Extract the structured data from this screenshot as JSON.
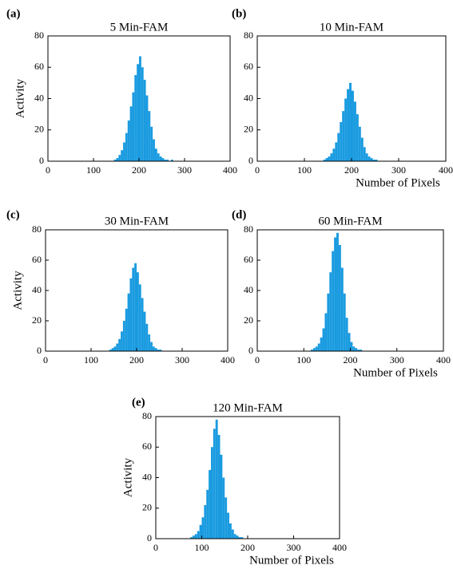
{
  "chart_data": [
    {
      "type": "histogram",
      "panel_label": "(a)",
      "title": "5 Min-FAM",
      "ylabel": "Activity",
      "color": "#1a9be0",
      "bins": [
        145,
        150,
        155,
        160,
        165,
        170,
        175,
        180,
        185,
        190,
        195,
        200,
        205,
        210,
        215,
        220,
        225,
        230,
        235,
        240,
        245,
        250,
        255,
        260,
        265,
        270,
        275,
        280
      ],
      "values": [
        1,
        2,
        4,
        7,
        12,
        18,
        26,
        35,
        44,
        55,
        62,
        67,
        60,
        52,
        42,
        32,
        22,
        14,
        8,
        5,
        3,
        2,
        1,
        1,
        0,
        1,
        0
      ],
      "xlim": [
        0,
        400
      ],
      "ylim": [
        0,
        80
      ],
      "xticks": [
        0,
        100,
        200,
        300,
        400
      ],
      "yticks": [
        0,
        20,
        40,
        60,
        80
      ]
    },
    {
      "type": "histogram",
      "panel_label": "(b)",
      "title": "10 Min-FAM",
      "xlabel": "Number of Pixels",
      "color": "#1a9be0",
      "bins": [
        140,
        145,
        150,
        155,
        160,
        165,
        170,
        175,
        180,
        185,
        190,
        195,
        200,
        205,
        210,
        215,
        220,
        225,
        230,
        235,
        240,
        245,
        250,
        255
      ],
      "values": [
        1,
        2,
        3,
        5,
        8,
        12,
        18,
        25,
        32,
        40,
        46,
        50,
        45,
        38,
        30,
        22,
        15,
        9,
        5,
        3,
        2,
        1,
        1
      ],
      "xlim": [
        0,
        400
      ],
      "ylim": [
        0,
        80
      ],
      "xticks": [
        0,
        100,
        200,
        300,
        400
      ],
      "yticks": [
        0,
        20,
        40,
        60,
        80
      ]
    },
    {
      "type": "histogram",
      "panel_label": "(c)",
      "title": "30 Min-FAM",
      "ylabel": "Activity",
      "color": "#1a9be0",
      "bins": [
        140,
        145,
        150,
        155,
        160,
        165,
        170,
        175,
        180,
        185,
        190,
        195,
        200,
        205,
        210,
        215,
        220,
        225,
        230,
        235,
        240,
        245,
        250,
        255,
        260
      ],
      "values": [
        1,
        2,
        3,
        5,
        8,
        13,
        20,
        28,
        38,
        48,
        55,
        58,
        52,
        44,
        35,
        26,
        18,
        11,
        6,
        3,
        2,
        1,
        1,
        0
      ],
      "xlim": [
        0,
        400
      ],
      "ylim": [
        0,
        80
      ],
      "xticks": [
        0,
        100,
        200,
        300,
        400
      ],
      "yticks": [
        0,
        20,
        40,
        60,
        80
      ]
    },
    {
      "type": "histogram",
      "panel_label": "(d)",
      "title": "60 Min-FAM",
      "xlabel": "Number of Pixels",
      "color": "#1a9be0",
      "bins": [
        115,
        120,
        125,
        130,
        135,
        140,
        145,
        150,
        155,
        160,
        165,
        170,
        175,
        180,
        185,
        190,
        195,
        200,
        205,
        210,
        215,
        220,
        225
      ],
      "values": [
        1,
        2,
        3,
        5,
        9,
        15,
        25,
        38,
        52,
        66,
        75,
        78,
        70,
        55,
        38,
        22,
        12,
        6,
        3,
        2,
        1,
        1
      ],
      "xlim": [
        0,
        400
      ],
      "ylim": [
        0,
        80
      ],
      "xticks": [
        0,
        100,
        200,
        300,
        400
      ],
      "yticks": [
        0,
        20,
        40,
        60,
        80
      ]
    },
    {
      "type": "histogram",
      "panel_label": "(e)",
      "title": "120 Min-FAM",
      "ylabel": "Activity",
      "xlabel": "Number of Pixels",
      "color": "#1a9be0",
      "bins": [
        75,
        80,
        85,
        90,
        95,
        100,
        105,
        110,
        115,
        120,
        125,
        130,
        135,
        140,
        145,
        150,
        155,
        160,
        165,
        170,
        175,
        180,
        185,
        190,
        195
      ],
      "values": [
        1,
        2,
        3,
        5,
        9,
        14,
        22,
        32,
        45,
        60,
        72,
        78,
        68,
        55,
        40,
        27,
        17,
        10,
        6,
        3,
        2,
        1,
        1,
        0
      ],
      "xlim": [
        0,
        400
      ],
      "ylim": [
        0,
        80
      ],
      "xticks": [
        0,
        100,
        200,
        300,
        400
      ],
      "yticks": [
        0,
        20,
        40,
        60,
        80
      ]
    }
  ]
}
